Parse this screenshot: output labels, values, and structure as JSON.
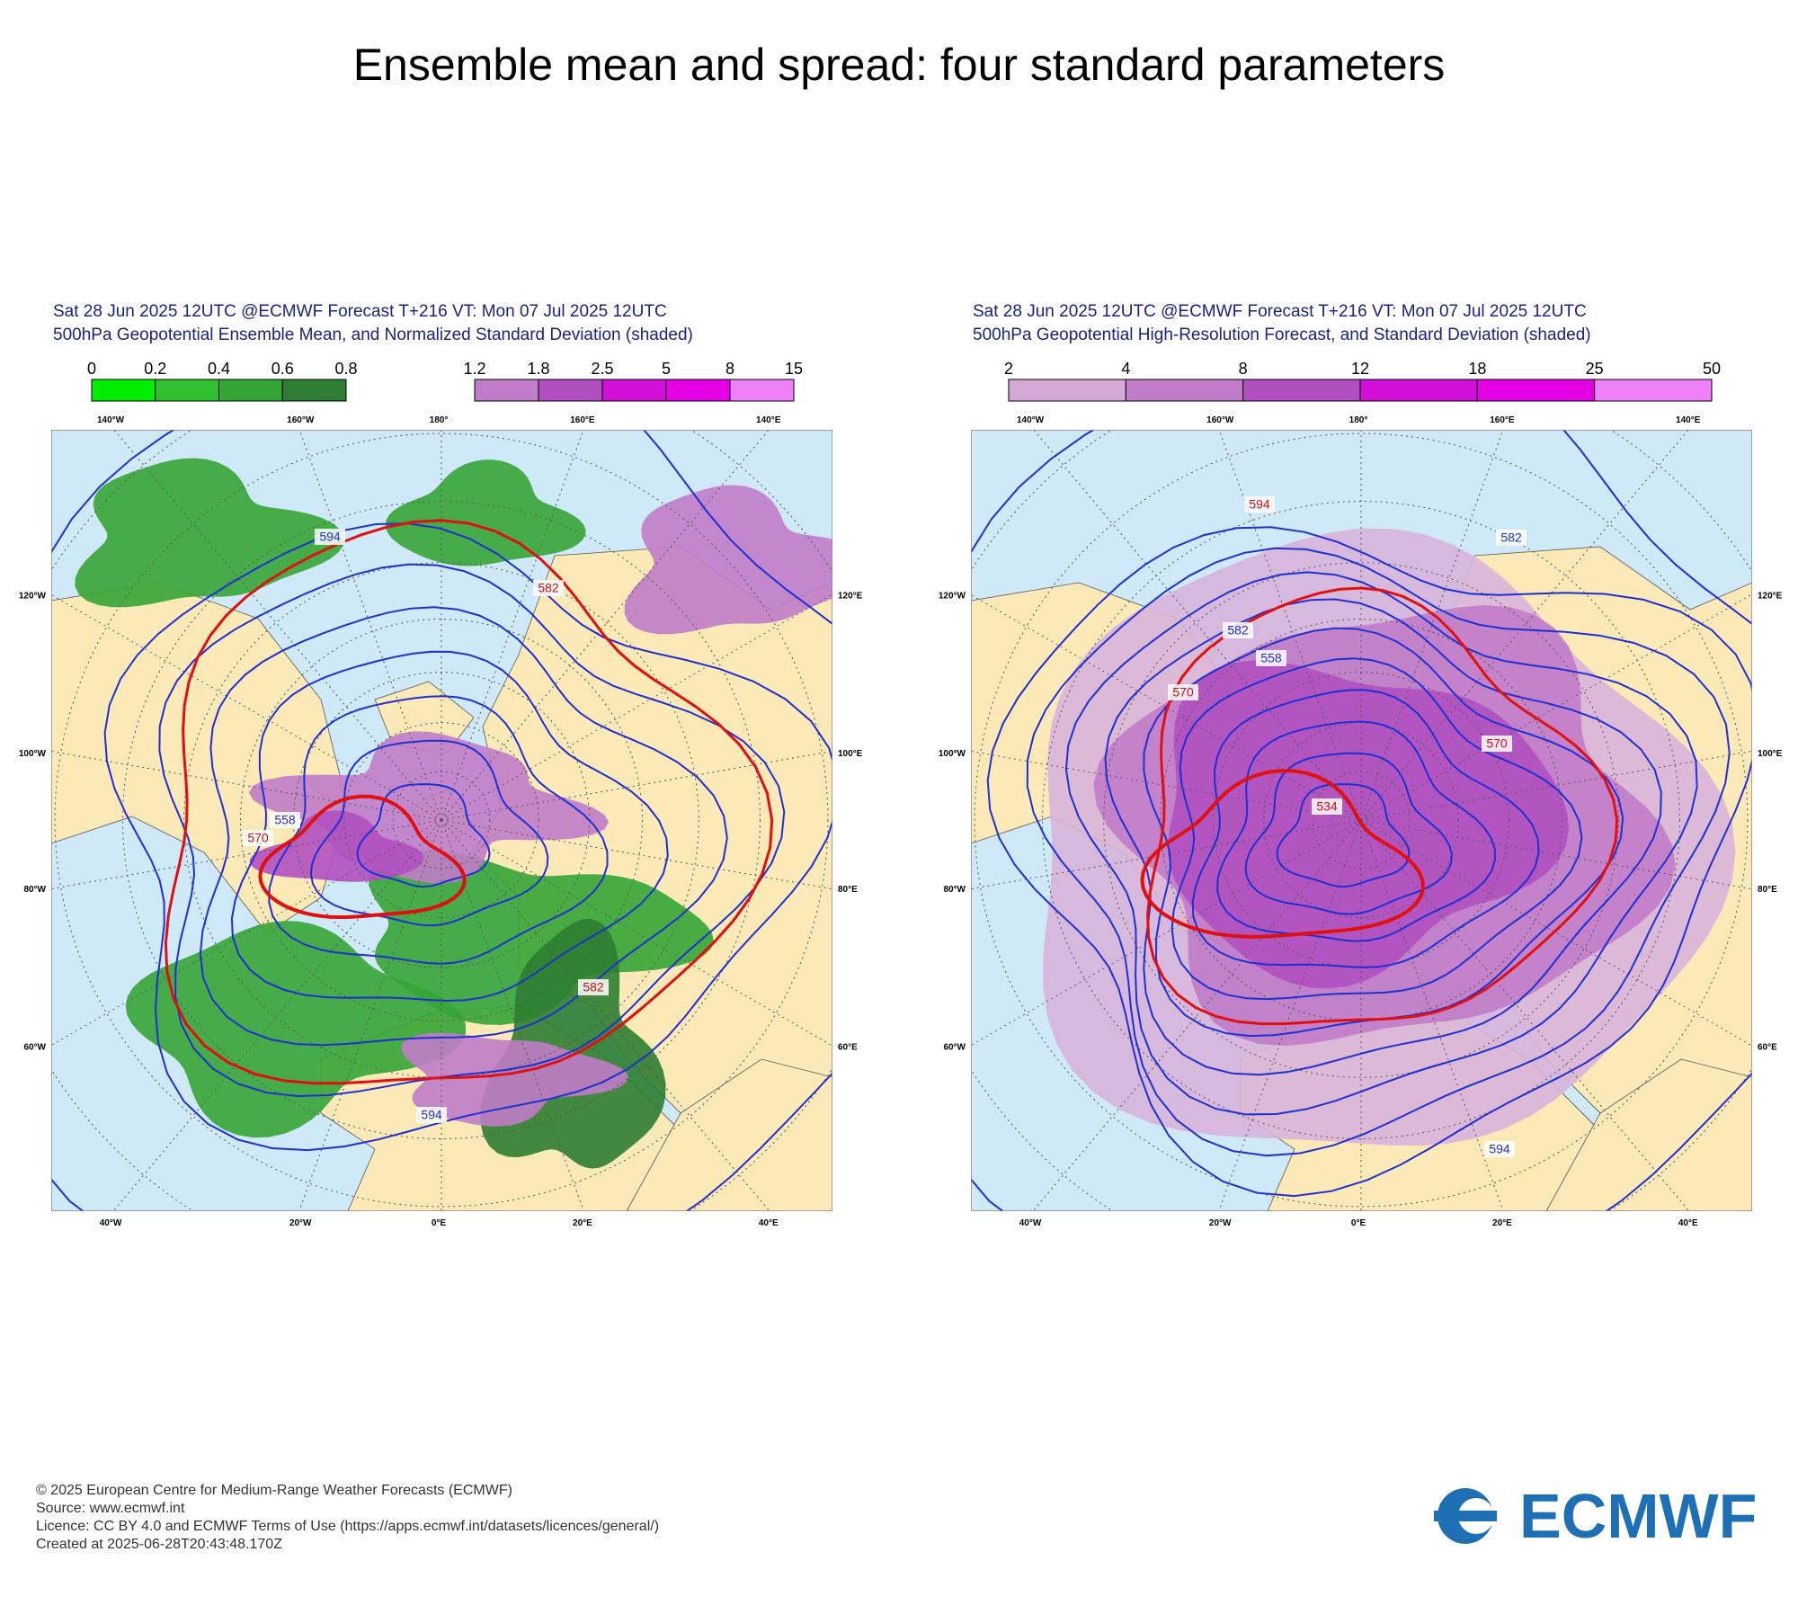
{
  "title": "Ensemble mean and spread: four standard parameters",
  "panels": [
    {
      "header": [
        "Sat 28 Jun 2025 12UTC @ECMWF Forecast T+216 VT: Mon 07 Jul 2025 12UTC",
        "500hPa Geopotential Ensemble Mean, and Normalized Standard Deviation (shaded)"
      ],
      "colorbars": [
        {
          "labels": [
            "0",
            "0.2",
            "0.4",
            "0.6",
            "0.8"
          ],
          "colors": [
            "#00ee00",
            "#2fc02f",
            "#35a535",
            "#2e7d32"
          ]
        },
        {
          "labels": [
            "1.2",
            "1.8",
            "2.5",
            "5",
            "8",
            "15"
          ],
          "colors": [
            "#c07cc8",
            "#b050c0",
            "#d010d8",
            "#e600e6",
            "#f080f8"
          ]
        }
      ],
      "lon_top": [
        "140°W",
        "160°W",
        "180°",
        "160°E",
        "140°E"
      ],
      "lon_left": [
        "120°W",
        "100°W",
        "80°W",
        "60°W"
      ],
      "lon_right": [
        "120°E",
        "100°E",
        "80°E",
        "60°E"
      ],
      "lon_bottom": [
        "40°W",
        "20°W",
        "0°E",
        "20°E",
        "40°E"
      ],
      "contour_labels": [
        "582",
        "594",
        "570",
        "558",
        "582",
        "594"
      ]
    },
    {
      "header": [
        "Sat 28 Jun 2025 12UTC @ECMWF Forecast T+216 VT: Mon 07 Jul 2025 12UTC",
        "500hPa Geopotential High-Resolution Forecast, and Standard Deviation (shaded)"
      ],
      "colorbars": [
        {
          "labels": [
            "2",
            "4",
            "8",
            "12",
            "18",
            "25",
            "50"
          ],
          "colors": [
            "#d4a8d4",
            "#c07cc8",
            "#b050c0",
            "#d010d8",
            "#e600e6",
            "#f080f8"
          ]
        }
      ],
      "lon_top": [
        "140°W",
        "160°W",
        "180°",
        "160°E",
        "140°E"
      ],
      "lon_left": [
        "120°W",
        "100°W",
        "80°W",
        "60°W"
      ],
      "lon_right": [
        "120°E",
        "100°E",
        "80°E",
        "60°E"
      ],
      "lon_bottom": [
        "40°W",
        "20°W",
        "0°E",
        "20°E",
        "40°E"
      ],
      "contour_labels": [
        "594",
        "582",
        "570",
        "558",
        "534",
        "582",
        "570",
        "594"
      ]
    }
  ],
  "footer": [
    "© 2025 European Centre for Medium-Range Weather Forecasts (ECMWF)",
    "Source: www.ecmwf.int",
    "Licence: CC BY 4.0 and ECMWF Terms of Use (https://apps.ecmwf.int/datasets/licences/general/)",
    "Created at 2025-06-28T20:43:48.170Z"
  ],
  "logo": "ECMWF"
}
